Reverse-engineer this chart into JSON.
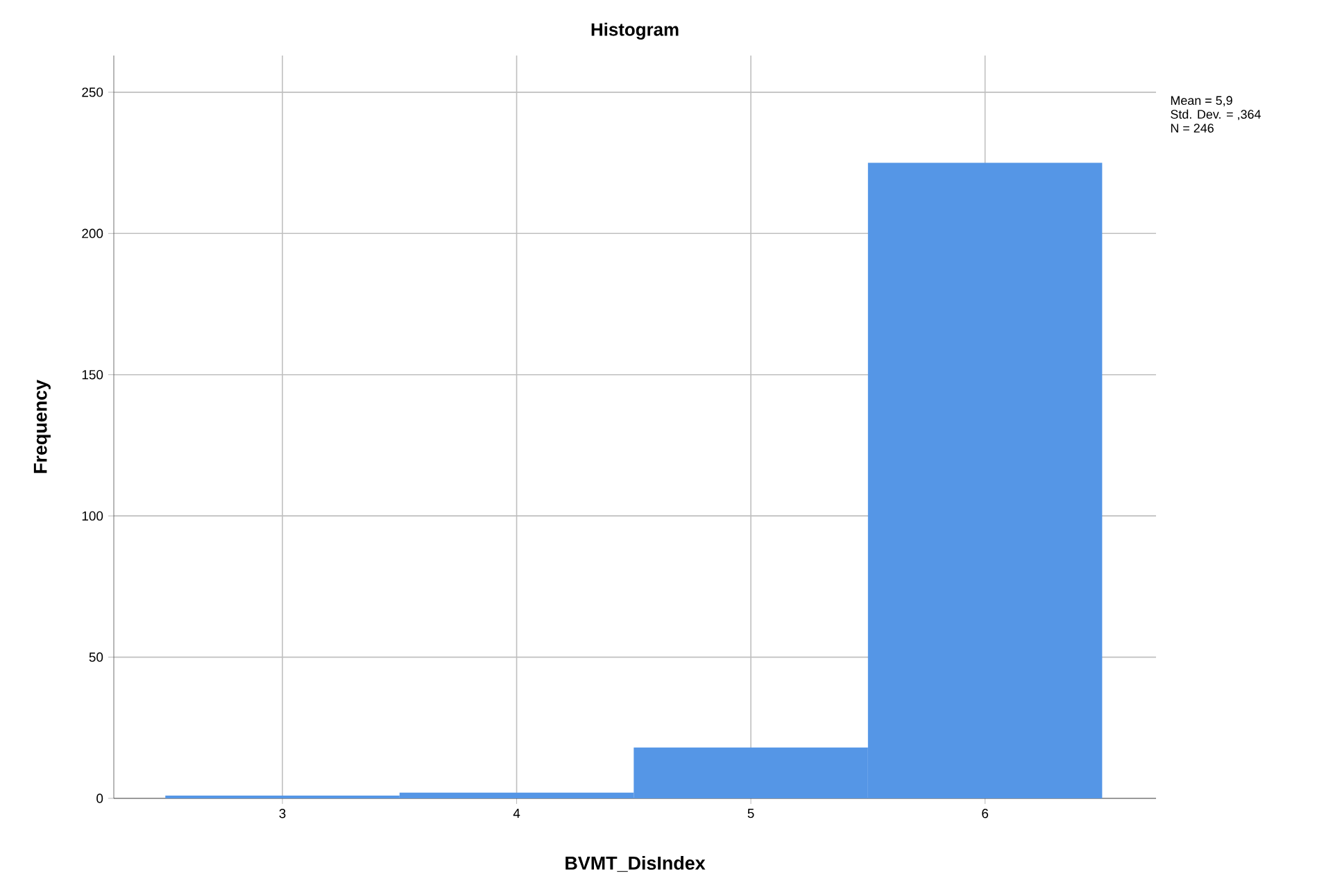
{
  "chart_data": {
    "type": "histogram",
    "title": "Histogram",
    "xlabel": "BVMT_DisIndex",
    "ylabel": "Frequency",
    "bins": [
      2.5,
      3.5,
      4.5,
      5.5,
      6.5
    ],
    "values": [
      1,
      2,
      18,
      225
    ],
    "color": "#5596e6",
    "xlim": [
      2.28,
      6.73
    ],
    "ylim": [
      0,
      263
    ],
    "xticks": [
      3,
      4,
      5,
      6
    ],
    "yticks": [
      0,
      50,
      100,
      150,
      200,
      250
    ],
    "grid": true,
    "annotations": [
      "Mean = 5,9",
      "Std. Dev. = ,364",
      "N = 246"
    ]
  }
}
